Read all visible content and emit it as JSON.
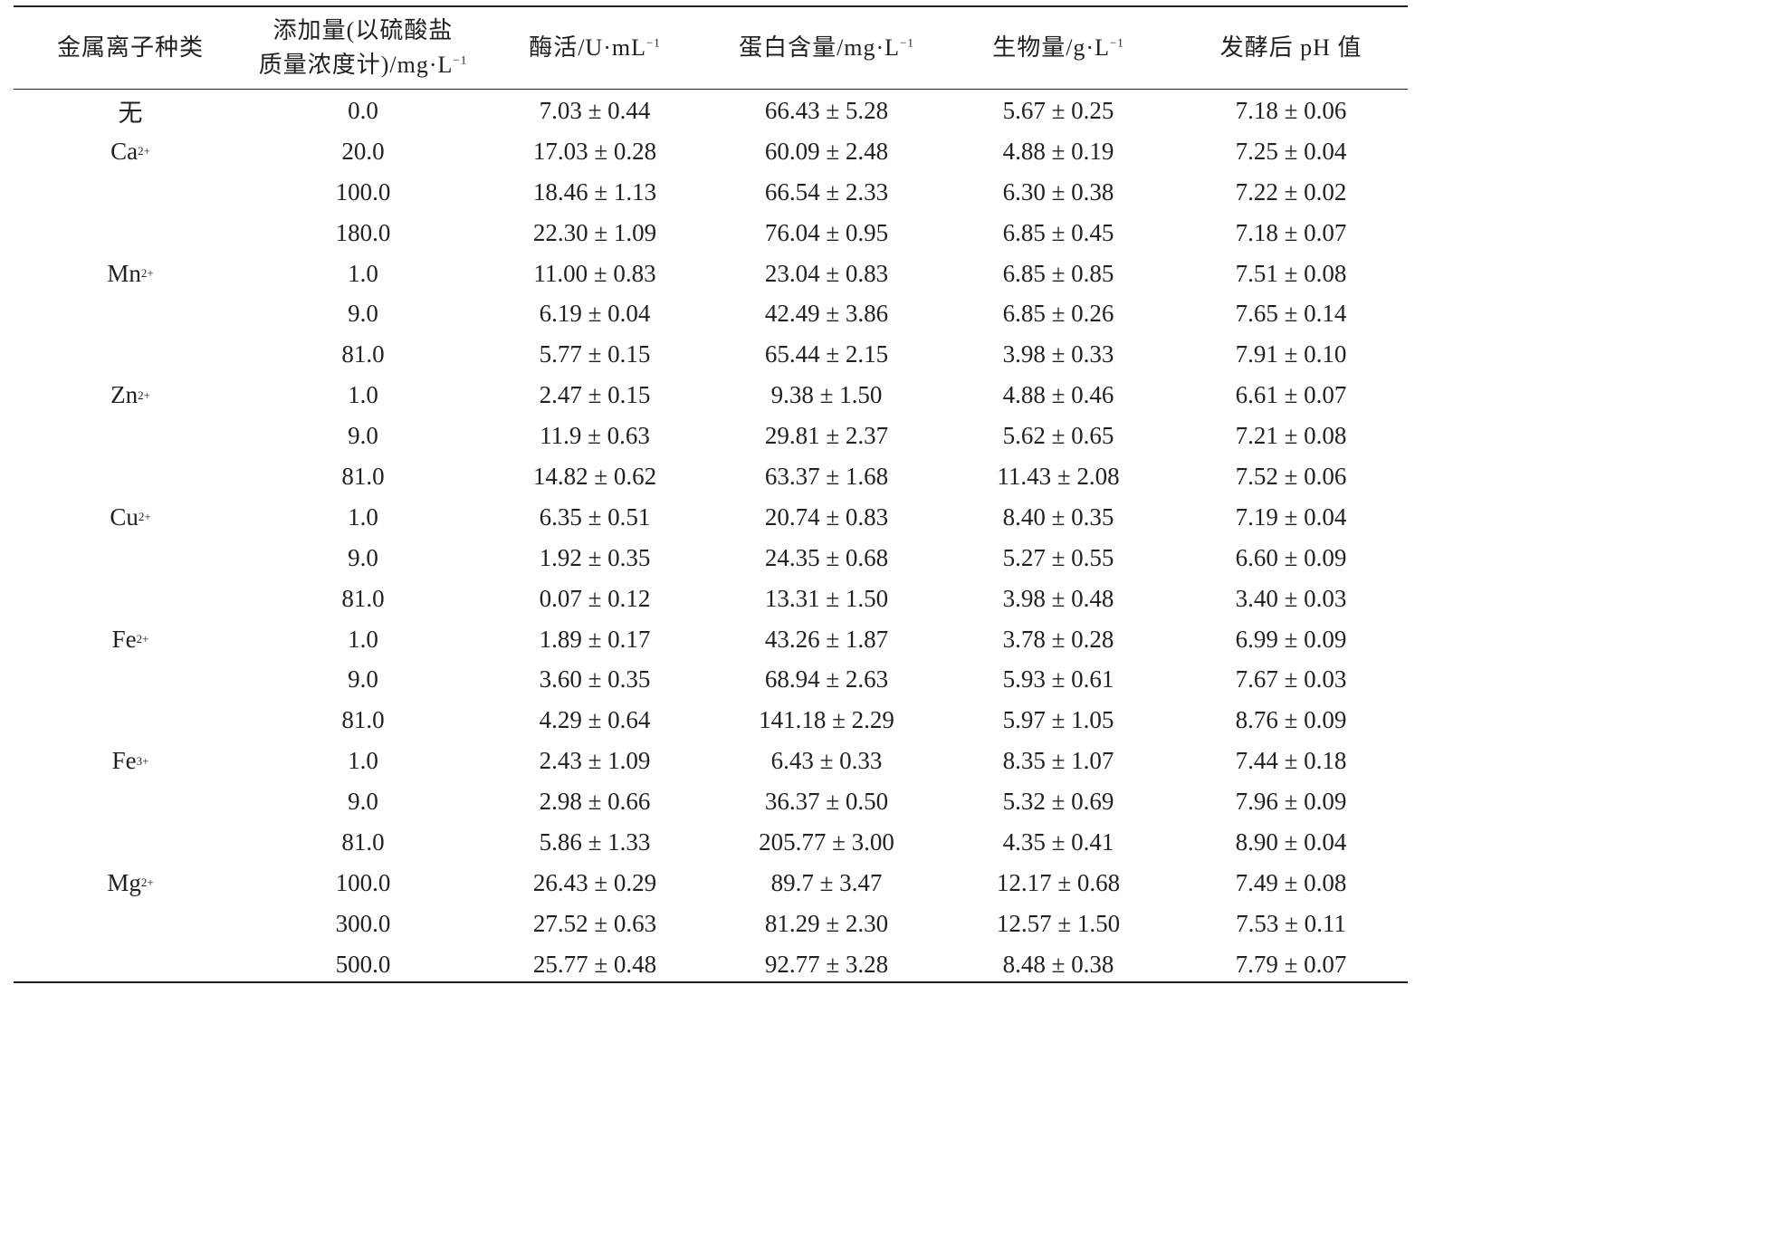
{
  "table": {
    "headers": {
      "ion_type": "金属离子种类",
      "dose_line1": "添加量(以硫酸盐",
      "dose_line2": "质量浓度计)/mg·L",
      "dose_sup": "−1",
      "enzyme": "酶活/U·mL",
      "enzyme_sup": "−1",
      "protein": "蛋白含量/mg·L",
      "protein_sup": "−1",
      "biomass": "生物量/g·L",
      "biomass_sup": "−1",
      "ph": "发酵后 pH 值"
    },
    "rows": [
      {
        "ion": "无",
        "ion_sup": "",
        "dose": "0.0",
        "enzyme": "7.03 ± 0.44",
        "protein": "66.43 ± 5.28",
        "biomass": "5.67 ± 0.25",
        "ph": "7.18 ± 0.06"
      },
      {
        "ion": "Ca",
        "ion_sup": "2+",
        "dose": "20.0",
        "enzyme": "17.03 ± 0.28",
        "protein": "60.09 ± 2.48",
        "biomass": "4.88 ± 0.19",
        "ph": "7.25 ± 0.04"
      },
      {
        "ion": "",
        "ion_sup": "",
        "dose": "100.0",
        "enzyme": "18.46 ± 1.13",
        "protein": "66.54 ± 2.33",
        "biomass": "6.30 ± 0.38",
        "ph": "7.22 ± 0.02"
      },
      {
        "ion": "",
        "ion_sup": "",
        "dose": "180.0",
        "enzyme": "22.30 ± 1.09",
        "protein": "76.04 ± 0.95",
        "biomass": "6.85 ± 0.45",
        "ph": "7.18 ± 0.07"
      },
      {
        "ion": "Mn",
        "ion_sup": "2+",
        "dose": "1.0",
        "enzyme": "11.00 ± 0.83",
        "protein": "23.04 ± 0.83",
        "biomass": "6.85 ± 0.85",
        "ph": "7.51 ± 0.08"
      },
      {
        "ion": "",
        "ion_sup": "",
        "dose": "9.0",
        "enzyme": "6.19 ± 0.04",
        "protein": "42.49 ± 3.86",
        "biomass": "6.85 ± 0.26",
        "ph": "7.65 ± 0.14"
      },
      {
        "ion": "",
        "ion_sup": "",
        "dose": "81.0",
        "enzyme": "5.77 ± 0.15",
        "protein": "65.44 ± 2.15",
        "biomass": "3.98 ± 0.33",
        "ph": "7.91 ± 0.10"
      },
      {
        "ion": "Zn",
        "ion_sup": "2+",
        "dose": "1.0",
        "enzyme": "2.47 ± 0.15",
        "protein": "9.38 ± 1.50",
        "biomass": "4.88 ± 0.46",
        "ph": "6.61 ± 0.07"
      },
      {
        "ion": "",
        "ion_sup": "",
        "dose": "9.0",
        "enzyme": "11.9 ± 0.63",
        "protein": "29.81 ± 2.37",
        "biomass": "5.62 ± 0.65",
        "ph": "7.21 ± 0.08"
      },
      {
        "ion": "",
        "ion_sup": "",
        "dose": "81.0",
        "enzyme": "14.82 ± 0.62",
        "protein": "63.37 ± 1.68",
        "biomass": "11.43 ± 2.08",
        "ph": "7.52 ± 0.06"
      },
      {
        "ion": "Cu",
        "ion_sup": "2+",
        "dose": "1.0",
        "enzyme": "6.35 ± 0.51",
        "protein": "20.74 ± 0.83",
        "biomass": "8.40 ± 0.35",
        "ph": "7.19 ± 0.04"
      },
      {
        "ion": "",
        "ion_sup": "",
        "dose": "9.0",
        "enzyme": "1.92 ± 0.35",
        "protein": "24.35 ± 0.68",
        "biomass": "5.27 ± 0.55",
        "ph": "6.60 ± 0.09"
      },
      {
        "ion": "",
        "ion_sup": "",
        "dose": "81.0",
        "enzyme": "0.07 ± 0.12",
        "protein": "13.31 ± 1.50",
        "biomass": "3.98 ± 0.48",
        "ph": "3.40 ± 0.03"
      },
      {
        "ion": "Fe",
        "ion_sup": "2+",
        "dose": "1.0",
        "enzyme": "1.89 ± 0.17",
        "protein": "43.26 ± 1.87",
        "biomass": "3.78 ± 0.28",
        "ph": "6.99 ± 0.09"
      },
      {
        "ion": "",
        "ion_sup": "",
        "dose": "9.0",
        "enzyme": "3.60 ± 0.35",
        "protein": "68.94 ± 2.63",
        "biomass": "5.93 ± 0.61",
        "ph": "7.67 ± 0.03"
      },
      {
        "ion": "",
        "ion_sup": "",
        "dose": "81.0",
        "enzyme": "4.29 ± 0.64",
        "protein": "141.18 ± 2.29",
        "biomass": "5.97 ± 1.05",
        "ph": "8.76 ± 0.09"
      },
      {
        "ion": "Fe",
        "ion_sup": "3+",
        "dose": "1.0",
        "enzyme": "2.43 ± 1.09",
        "protein": "6.43 ± 0.33",
        "biomass": "8.35 ± 1.07",
        "ph": "7.44 ± 0.18"
      },
      {
        "ion": "",
        "ion_sup": "",
        "dose": "9.0",
        "enzyme": "2.98 ± 0.66",
        "protein": "36.37 ± 0.50",
        "biomass": "5.32 ± 0.69",
        "ph": "7.96 ± 0.09"
      },
      {
        "ion": "",
        "ion_sup": "",
        "dose": "81.0",
        "enzyme": "5.86 ± 1.33",
        "protein": "205.77 ± 3.00",
        "biomass": "4.35 ± 0.41",
        "ph": "8.90 ± 0.04"
      },
      {
        "ion": "Mg",
        "ion_sup": "2+",
        "dose": "100.0",
        "enzyme": "26.43 ± 0.29",
        "protein": "89.7 ± 3.47",
        "biomass": "12.17 ± 0.68",
        "ph": "7.49 ± 0.08"
      },
      {
        "ion": "",
        "ion_sup": "",
        "dose": "300.0",
        "enzyme": "27.52 ± 0.63",
        "protein": "81.29 ± 2.30",
        "biomass": "12.57 ± 1.50",
        "ph": "7.53 ± 0.11"
      },
      {
        "ion": "",
        "ion_sup": "",
        "dose": "500.0",
        "enzyme": "25.77 ± 0.48",
        "protein": "92.77 ± 3.28",
        "biomass": "8.48 ± 0.38",
        "ph": "7.79 ± 0.07"
      }
    ]
  }
}
